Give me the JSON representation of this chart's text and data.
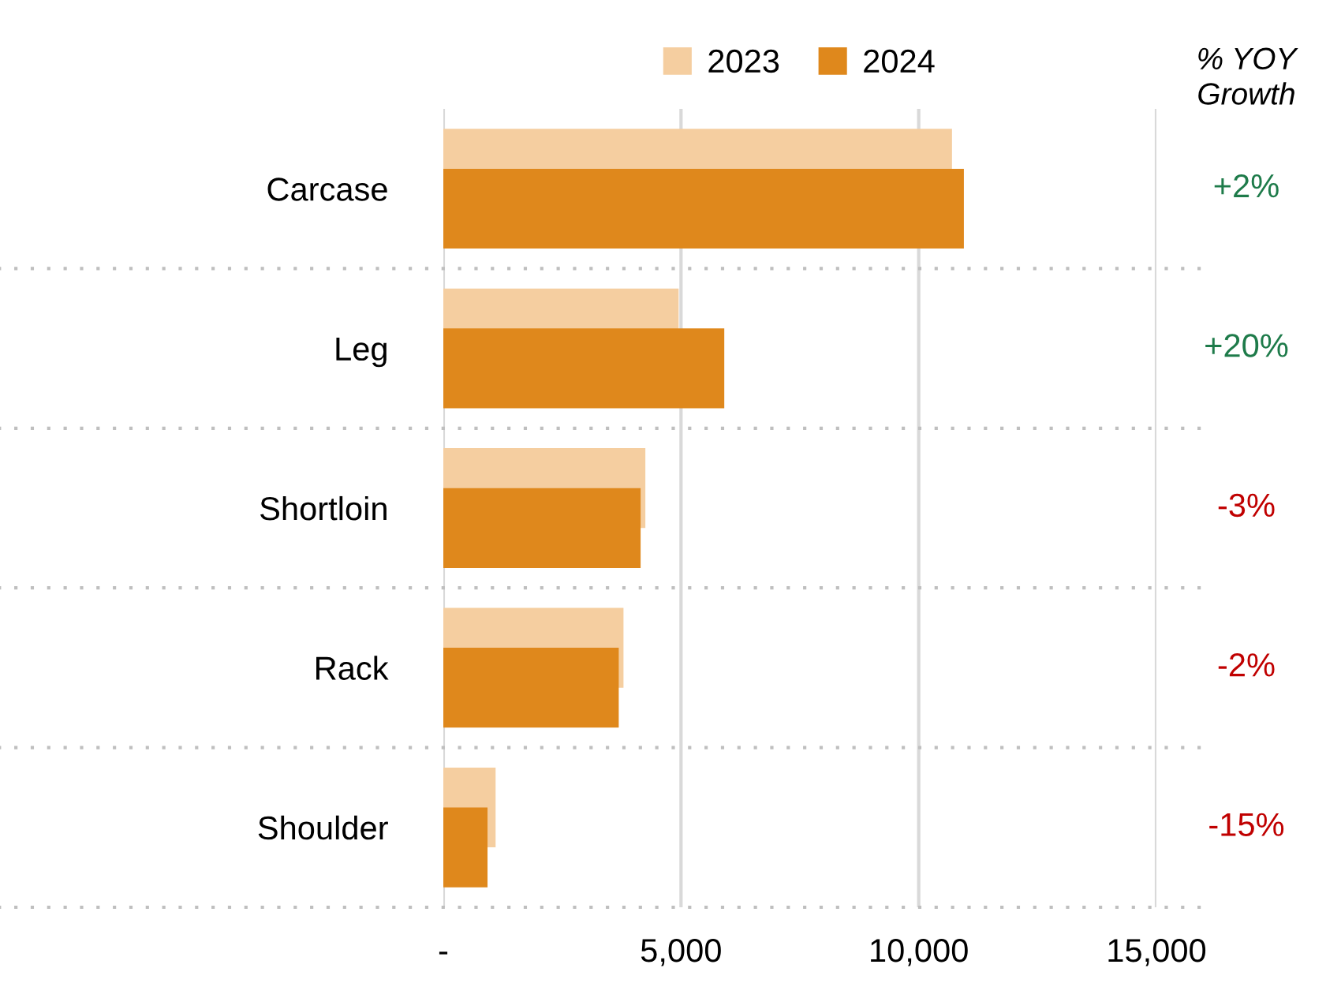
{
  "chart_data": {
    "type": "bar",
    "orientation": "horizontal",
    "categories": [
      "Carcase",
      "Leg",
      "Shortloin",
      "Rack",
      "Shoulder"
    ],
    "series": [
      {
        "name": "2023",
        "color": "#f5cea0",
        "values": [
          10700,
          4950,
          4250,
          3790,
          1100
        ]
      },
      {
        "name": "2024",
        "color": "#df881c",
        "values": [
          10950,
          5910,
          4150,
          3690,
          930
        ]
      }
    ],
    "xlim": [
      0,
      15000
    ],
    "xticks": [
      {
        "value": 0,
        "label": "-"
      },
      {
        "value": 5000,
        "label": "5,000"
      },
      {
        "value": 10000,
        "label": "10,000"
      },
      {
        "value": 15000,
        "label": "15,000"
      }
    ],
    "grid": "x",
    "legend": "top",
    "annotations": [
      "% YOY\nGrowth",
      "+2%",
      "+20%",
      "-3%",
      "-2%",
      "-15%"
    ]
  }
}
